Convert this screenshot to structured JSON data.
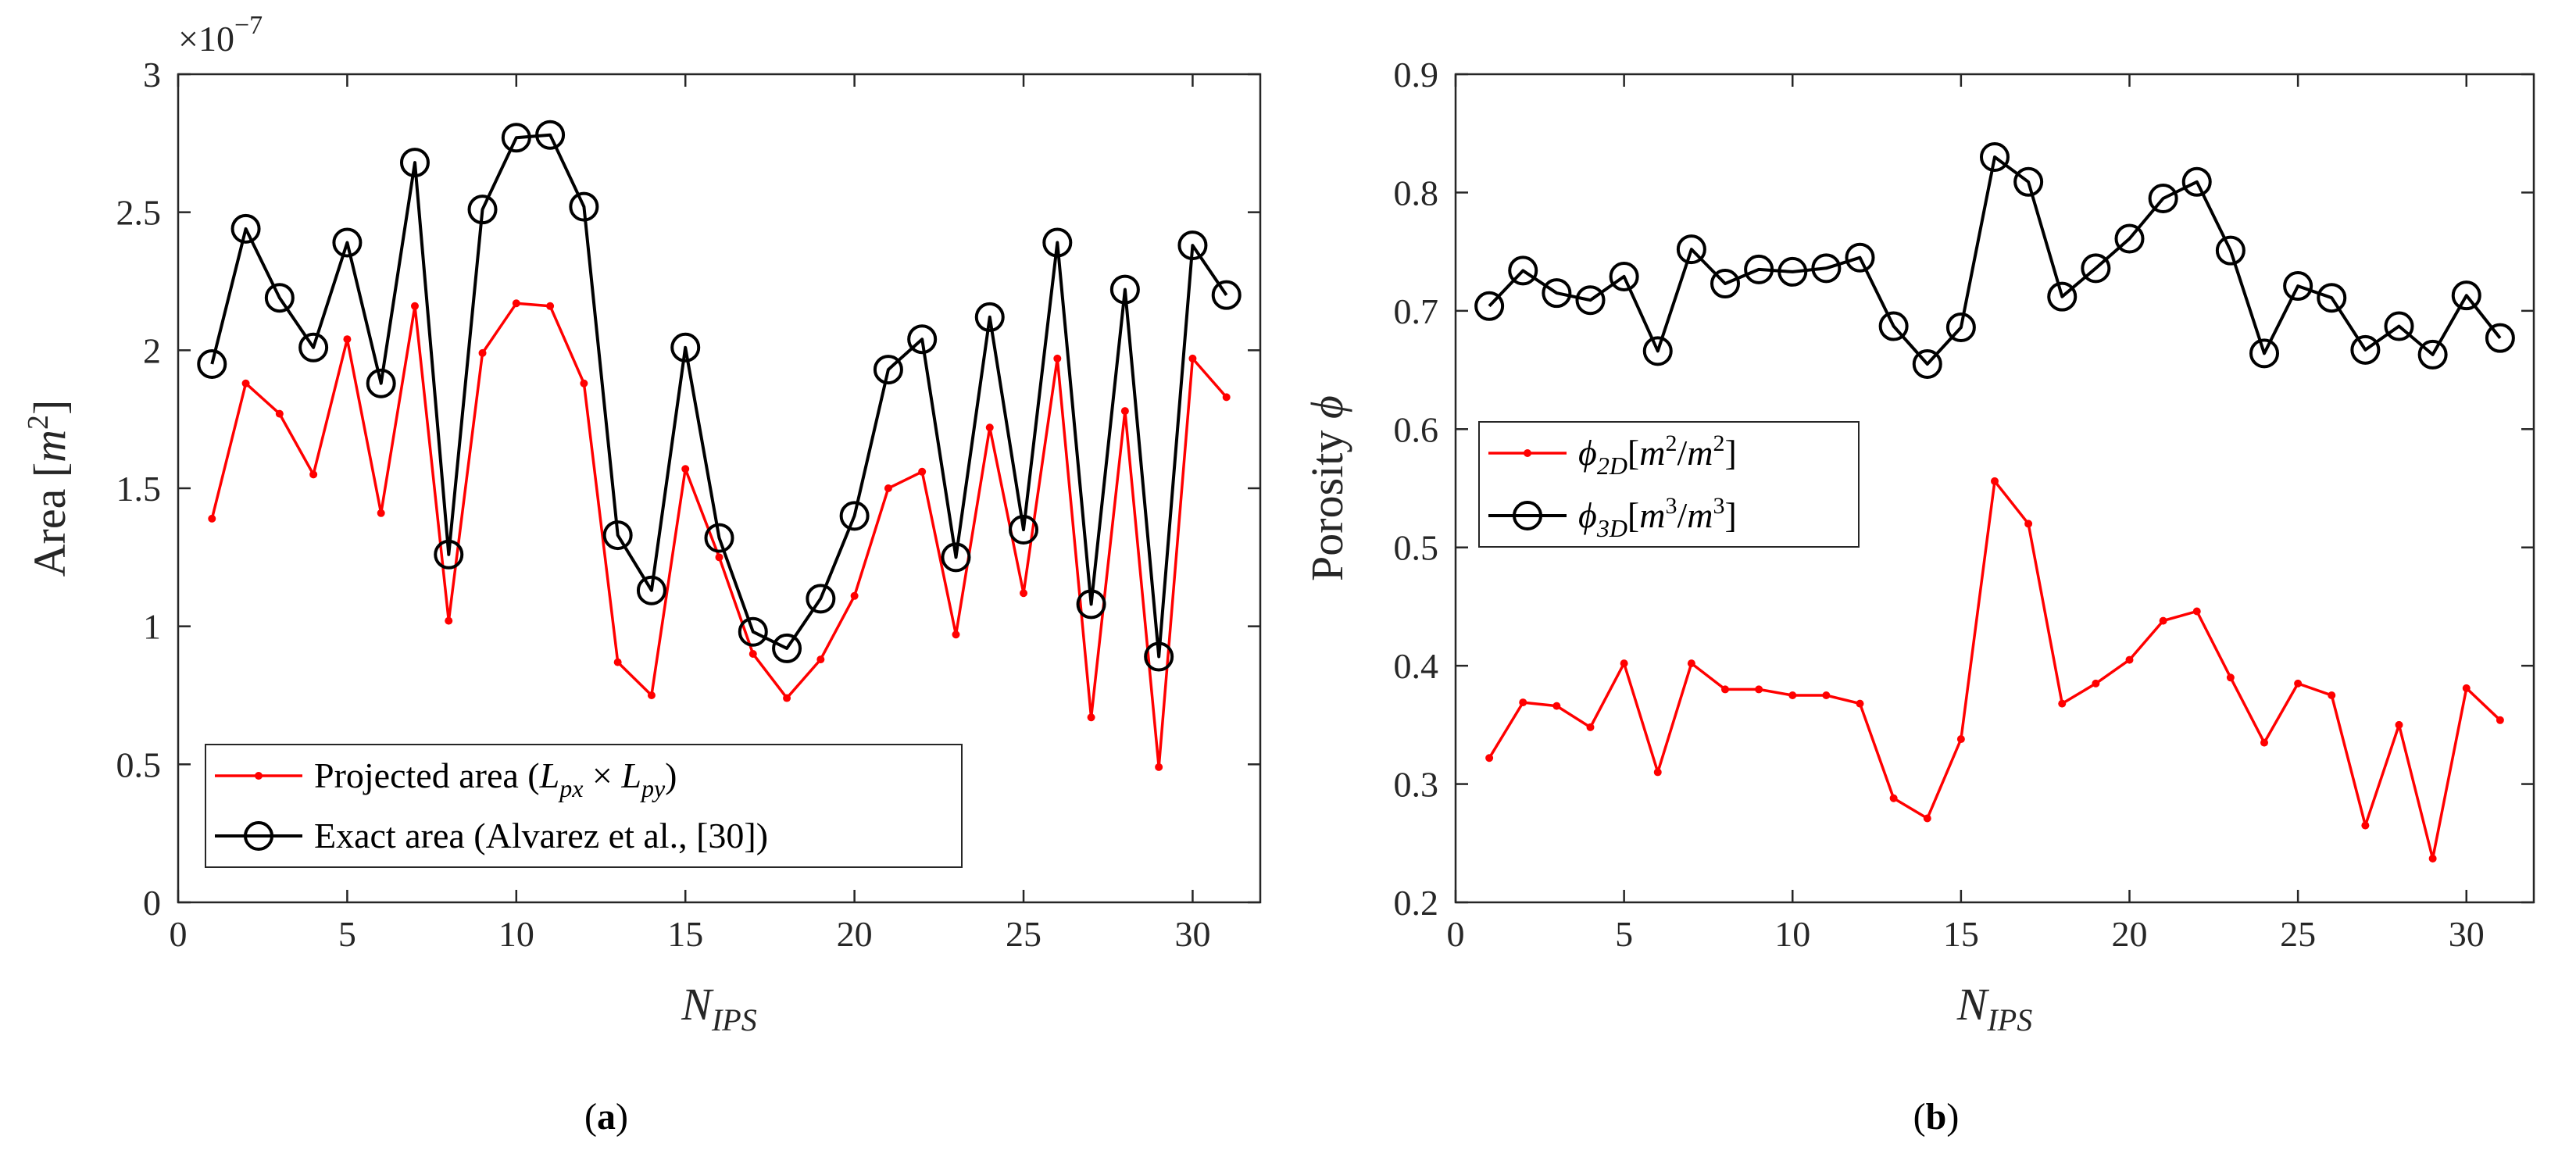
{
  "chart_data": [
    {
      "type": "line",
      "panel_label": "a",
      "exponent_label": "×10",
      "exponent_power": "−7",
      "ylabel": "Area [",
      "ylabel_var": "m",
      "ylabel_sup": "2",
      "ylabel_end": "]",
      "xlabel_main": "N",
      "xlabel_sub": "IPS",
      "xlim": [
        0,
        32
      ],
      "ylim": [
        0,
        3
      ],
      "xticks": [
        "0",
        "5",
        "10",
        "15",
        "20",
        "25",
        "30"
      ],
      "yticks": [
        "0",
        "0.5",
        "1",
        "1.5",
        "2",
        "2.5",
        "3"
      ],
      "x": [
        1,
        2,
        3,
        4,
        5,
        6,
        7,
        8,
        9,
        10,
        11,
        12,
        13,
        14,
        15,
        16,
        17,
        18,
        19,
        20,
        21,
        22,
        23,
        24,
        25,
        26,
        27,
        28,
        29,
        30,
        31
      ],
      "series": [
        {
          "name": "Projected area",
          "legend": {
            "pre": "Projected area (",
            "v1": "L",
            "s1": "px",
            "mid": " × ",
            "v2": "L",
            "s2": "py",
            "post": ")"
          },
          "color": "#ff0000",
          "marker": "dot",
          "values": [
            1.39,
            1.88,
            1.77,
            1.55,
            2.04,
            1.41,
            2.16,
            1.02,
            1.99,
            2.17,
            2.16,
            1.88,
            0.87,
            0.75,
            1.57,
            1.25,
            0.9,
            0.74,
            0.88,
            1.11,
            1.5,
            1.56,
            0.97,
            1.72,
            1.12,
            1.97,
            0.67,
            1.78,
            0.49,
            1.97,
            1.83
          ]
        },
        {
          "name": "Exact area",
          "legend": {
            "text": "Exact area (Alvarez et al., [30])"
          },
          "color": "#000000",
          "marker": "circle",
          "values": [
            1.95,
            2.44,
            2.19,
            2.01,
            2.39,
            1.88,
            2.68,
            1.26,
            2.51,
            2.77,
            2.78,
            2.52,
            1.33,
            1.13,
            2.01,
            1.32,
            0.98,
            0.92,
            1.1,
            1.4,
            1.93,
            2.04,
            1.25,
            2.12,
            1.35,
            2.39,
            1.08,
            2.22,
            0.89,
            2.38,
            2.2
          ]
        }
      ]
    },
    {
      "type": "line",
      "panel_label": "b",
      "ylabel": "Porosity ",
      "ylabel_var": "ϕ",
      "xlabel_main": "N",
      "xlabel_sub": "IPS",
      "xlim": [
        0,
        32
      ],
      "ylim": [
        0.2,
        0.9
      ],
      "xticks": [
        "0",
        "5",
        "10",
        "15",
        "20",
        "25",
        "30"
      ],
      "yticks": [
        "0.2",
        "0.3",
        "0.4",
        "0.5",
        "0.6",
        "0.7",
        "0.8",
        "0.9"
      ],
      "x": [
        1,
        2,
        3,
        4,
        5,
        6,
        7,
        8,
        9,
        10,
        11,
        12,
        13,
        14,
        15,
        16,
        17,
        18,
        19,
        20,
        21,
        22,
        23,
        24,
        25,
        26,
        27,
        28,
        29,
        30,
        31
      ],
      "series": [
        {
          "name": "phi_2D",
          "legend": {
            "v": "ϕ",
            "sub": "2D",
            "open": "[",
            "u1": "m",
            "e1": "2",
            "slash": "/",
            "u2": "m",
            "e2": "2",
            "close": "]"
          },
          "color": "#ff0000",
          "marker": "dot",
          "values": [
            0.322,
            0.369,
            0.366,
            0.348,
            0.402,
            0.31,
            0.402,
            0.38,
            0.38,
            0.375,
            0.375,
            0.368,
            0.288,
            0.271,
            0.338,
            0.556,
            0.52,
            0.368,
            0.385,
            0.405,
            0.438,
            0.446,
            0.39,
            0.335,
            0.385,
            0.375,
            0.265,
            0.35,
            0.237,
            0.381,
            0.354
          ]
        },
        {
          "name": "phi_3D",
          "legend": {
            "v": "ϕ",
            "sub": "3D",
            "open": "[",
            "u1": "m",
            "e1": "3",
            "slash": "/",
            "u2": "m",
            "e2": "3",
            "close": "]"
          },
          "color": "#000000",
          "marker": "circle",
          "values": [
            0.704,
            0.734,
            0.715,
            0.709,
            0.729,
            0.666,
            0.752,
            0.723,
            0.735,
            0.733,
            0.736,
            0.745,
            0.687,
            0.655,
            0.686,
            0.83,
            0.809,
            0.712,
            0.736,
            0.761,
            0.795,
            0.809,
            0.751,
            0.664,
            0.721,
            0.711,
            0.667,
            0.687,
            0.663,
            0.713,
            0.677
          ]
        }
      ]
    }
  ]
}
